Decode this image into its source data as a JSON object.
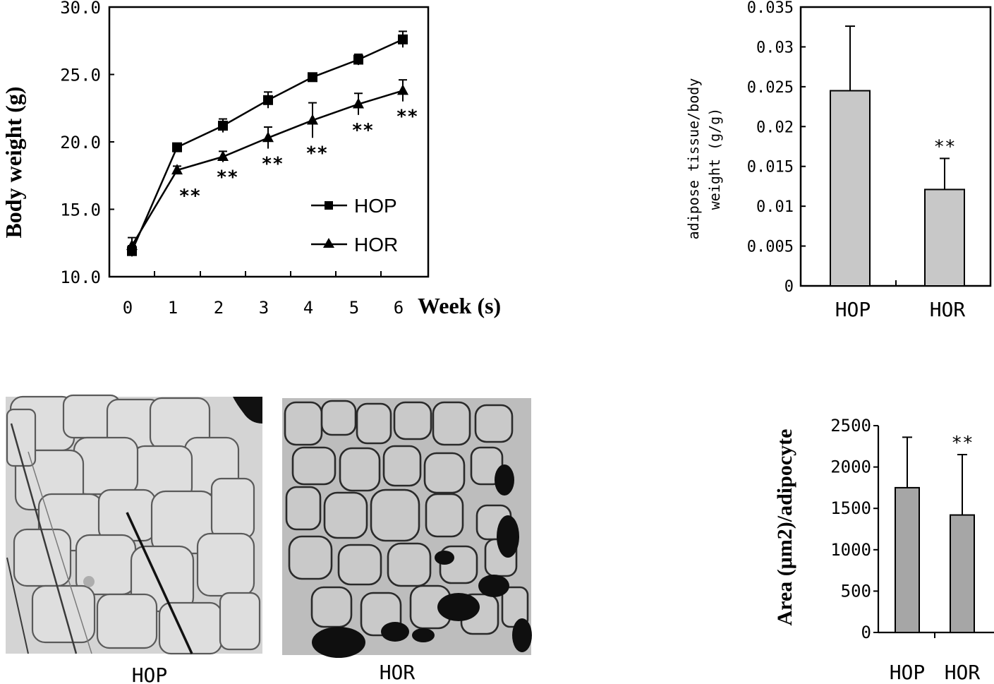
{
  "chart_data": [
    {
      "id": "body-weight",
      "type": "line",
      "ylabel": "Body weight (g)",
      "xlabel": "Week (s)",
      "x": [
        0,
        1,
        2,
        3,
        4,
        5,
        6
      ],
      "y_ticks": [
        "10.0",
        "15.0",
        "20.0",
        "25.0",
        "30.0"
      ],
      "ylim": [
        10,
        30
      ],
      "grid": false,
      "legend_position": "bottom-right",
      "series": [
        {
          "name": "HOP",
          "marker": "square",
          "values": [
            11.9,
            19.6,
            21.2,
            23.1,
            24.8,
            26.1,
            27.6
          ],
          "errors": [
            0.4,
            0.2,
            0.5,
            0.6,
            0.3,
            0.4,
            0.6
          ]
        },
        {
          "name": "HOR",
          "marker": "triangle",
          "values": [
            12.3,
            17.9,
            18.9,
            20.3,
            21.6,
            22.8,
            23.8
          ],
          "errors": [
            0.6,
            0.3,
            0.4,
            0.8,
            1.3,
            0.8,
            0.8
          ]
        }
      ],
      "annotations": [
        "**",
        "**",
        "**",
        "**",
        "**",
        "**"
      ]
    },
    {
      "id": "adipose-ratio",
      "type": "bar",
      "ylabel": "adipose tissue/body weight (g/g)",
      "ylabel_lines": [
        "adipose tissue/body",
        "weight (g/g)"
      ],
      "categories": [
        "HOP",
        "HOR"
      ],
      "values": [
        0.0245,
        0.0121
      ],
      "errors": [
        0.0081,
        0.0039
      ],
      "y_ticks": [
        "0",
        "0.005",
        "0.01",
        "0.015",
        "0.02",
        "0.025",
        "0.03",
        "0.035"
      ],
      "ylim": [
        0,
        0.035
      ],
      "bar_color": "#c8c8c8",
      "annotation": "**"
    },
    {
      "id": "adipocyte-area",
      "type": "bar",
      "ylabel": "Area (μm2)/adipocyte",
      "categories": [
        "HOP",
        "HOR"
      ],
      "values": [
        1750,
        1420
      ],
      "errors": [
        610,
        730
      ],
      "y_ticks": [
        "0",
        "500",
        "1000",
        "1500",
        "2000",
        "2500"
      ],
      "ylim": [
        0,
        2500
      ],
      "bar_color": "#a6a6a6",
      "annotation": "**"
    }
  ],
  "micrographs": {
    "left_caption": "HOP",
    "right_caption": "HOR"
  }
}
